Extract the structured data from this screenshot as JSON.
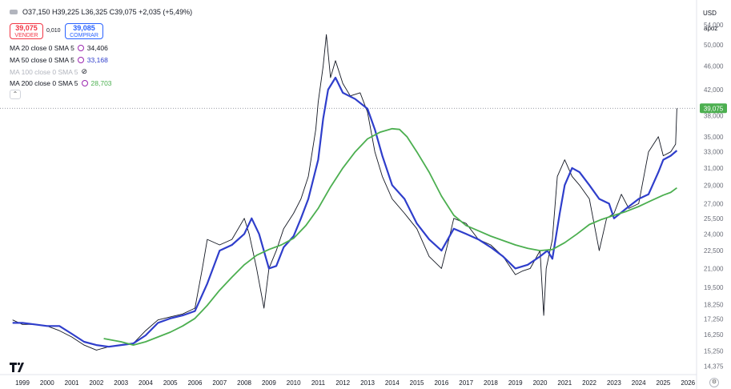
{
  "header": {
    "ohlc": "O37,150 H39,225 L36,325 C39,075 +2,035 (+5,49%)",
    "sell": {
      "price": "39,075",
      "label": "VENDER"
    },
    "spread": "0,010",
    "buy": {
      "price": "39,085",
      "label": "COMPRAR"
    },
    "indicators": [
      {
        "label": "MA 20 close 0 SMA 5",
        "value": "34,406",
        "color": "#131722"
      },
      {
        "label": "MA 50 close 0 SMA 5",
        "value": "33,168",
        "color": "#2f3ecb"
      },
      {
        "label": "MA 100 close 0 SMA 5",
        "value": "",
        "hidden": true
      },
      {
        "label": "MA 200 close 0 SMA 5",
        "value": "28,703",
        "color": "#4caf50"
      }
    ]
  },
  "price_axis": {
    "currency": "USD",
    "mode": "apoz"
  },
  "colors": {
    "price": "#131722",
    "ma50": "#2f3ecb",
    "ma200": "#4caf50",
    "last_price_bg": "#4caf50"
  },
  "chart_data": {
    "type": "line",
    "log_scale": true,
    "y_ticks": [
      "54,000",
      "50,000",
      "46,000",
      "42,000",
      "38,000",
      "35,000",
      "33,000",
      "31,000",
      "29,000",
      "27,000",
      "25,500",
      "24,000",
      "22,500",
      "21,000",
      "19,500",
      "18,250",
      "17,250",
      "16,250",
      "15,250",
      "14,375"
    ],
    "y_tick_values": [
      54,
      50,
      46,
      42,
      38,
      35,
      33,
      31,
      29,
      27,
      25.5,
      24,
      22.5,
      21,
      19.5,
      18.25,
      17.25,
      16.25,
      15.25,
      14.375
    ],
    "last_price_label": "39,075",
    "last_price": 39.075,
    "x_ticks": [
      "1999",
      "2000",
      "2001",
      "2002",
      "2003",
      "2004",
      "2005",
      "2006",
      "2007",
      "2008",
      "2009",
      "2010",
      "2011",
      "2012",
      "2013",
      "2014",
      "2015",
      "2016",
      "2017",
      "2018",
      "2019",
      "2020",
      "2021",
      "2022",
      "2023",
      "2024",
      "2025",
      "2026"
    ],
    "series": [
      {
        "key": "price",
        "x": [
          1998.6,
          1999,
          1999.5,
          2000,
          2000.5,
          2001,
          2001.5,
          2002,
          2002.5,
          2003,
          2003.5,
          2004,
          2004.5,
          2005,
          2005.5,
          2006,
          2006.3,
          2006.5,
          2007,
          2007.5,
          2008,
          2008.2,
          2008.5,
          2008.8,
          2009,
          2009.3,
          2009.6,
          2010,
          2010.3,
          2010.6,
          2010.9,
          2011,
          2011.2,
          2011.33,
          2011.5,
          2011.7,
          2012,
          2012.3,
          2012.7,
          2013,
          2013.3,
          2013.6,
          2014,
          2014.5,
          2015,
          2015.5,
          2016,
          2016.3,
          2016.5,
          2017,
          2017.5,
          2018,
          2018.5,
          2019,
          2019.3,
          2019.6,
          2020,
          2020.15,
          2020.25,
          2020.5,
          2020.7,
          2021,
          2021.3,
          2021.6,
          2022,
          2022.4,
          2022.7,
          2023,
          2023.3,
          2023.6,
          2024,
          2024.4,
          2024.8,
          2025,
          2025.3,
          2025.5,
          2025.55
        ],
        "y": [
          17.2,
          16.9,
          16.9,
          16.8,
          16.5,
          16.1,
          15.6,
          15.3,
          15.5,
          15.6,
          15.7,
          16.5,
          17.2,
          17.4,
          17.6,
          18.0,
          21.0,
          23.5,
          23.0,
          23.5,
          25.5,
          24.0,
          21.0,
          18.0,
          21.0,
          22.5,
          24.5,
          26.0,
          27.5,
          30.0,
          36.0,
          40.0,
          46.0,
          52.0,
          44.0,
          47.0,
          43.0,
          41.0,
          41.5,
          38.5,
          33.0,
          30.0,
          27.5,
          26.0,
          24.5,
          22.0,
          21.0,
          23.5,
          25.5,
          25.0,
          23.5,
          23.0,
          22.0,
          20.5,
          20.8,
          21.0,
          22.5,
          17.5,
          21.0,
          23.5,
          30.0,
          32.0,
          30.0,
          29.0,
          27.5,
          22.5,
          25.5,
          26.0,
          28.0,
          26.5,
          27.0,
          33.0,
          35.0,
          32.5,
          33.0,
          34.0,
          39.075
        ]
      },
      {
        "key": "ma50",
        "x": [
          1998.6,
          1999,
          1999.5,
          2000,
          2000.5,
          2001,
          2001.5,
          2002,
          2002.5,
          2003,
          2003.5,
          2004,
          2004.5,
          2005,
          2005.5,
          2006,
          2006.5,
          2007,
          2007.5,
          2008,
          2008.3,
          2008.6,
          2009,
          2009.3,
          2009.6,
          2010,
          2010.3,
          2010.6,
          2011,
          2011.2,
          2011.4,
          2011.7,
          2012,
          2012.5,
          2013,
          2013.3,
          2013.6,
          2014,
          2014.5,
          2015,
          2015.5,
          2016,
          2016.5,
          2017,
          2017.5,
          2018,
          2018.5,
          2019,
          2019.5,
          2020,
          2020.3,
          2020.5,
          2020.8,
          2021,
          2021.3,
          2021.6,
          2022,
          2022.4,
          2022.8,
          2023,
          2023.5,
          2024,
          2024.4,
          2024.8,
          2025,
          2025.3,
          2025.55
        ],
        "y": [
          17.0,
          17.0,
          16.9,
          16.8,
          16.8,
          16.3,
          15.8,
          15.6,
          15.5,
          15.6,
          15.7,
          16.2,
          17.0,
          17.3,
          17.5,
          17.8,
          19.8,
          22.5,
          23.0,
          24.0,
          25.5,
          24.0,
          21.0,
          21.2,
          22.8,
          23.8,
          25.5,
          27.5,
          32.0,
          37.5,
          42.0,
          44.0,
          41.5,
          40.5,
          39.0,
          36.0,
          32.5,
          29.0,
          27.5,
          25.0,
          23.5,
          22.5,
          24.5,
          24.0,
          23.5,
          22.8,
          22.0,
          21.0,
          21.3,
          22.0,
          22.5,
          21.8,
          26.0,
          29.0,
          31.0,
          30.5,
          29.0,
          27.5,
          27.0,
          25.5,
          26.5,
          27.5,
          28.0,
          30.5,
          32.0,
          32.5,
          33.168
        ]
      },
      {
        "key": "ma200",
        "x": [
          2002.3,
          2003,
          2003.5,
          2004,
          2004.5,
          2005,
          2005.5,
          2006,
          2006.5,
          2007,
          2007.5,
          2008,
          2008.5,
          2009,
          2009.5,
          2010,
          2010.5,
          2011,
          2011.5,
          2012,
          2012.5,
          2013,
          2013.5,
          2014,
          2014.3,
          2014.6,
          2015,
          2015.5,
          2016,
          2016.5,
          2017,
          2017.5,
          2018,
          2018.5,
          2019,
          2019.5,
          2020,
          2020.5,
          2021,
          2021.5,
          2022,
          2022.5,
          2023,
          2023.5,
          2024,
          2024.5,
          2025,
          2025.3,
          2025.55
        ],
        "y": [
          16.0,
          15.8,
          15.6,
          15.8,
          16.1,
          16.4,
          16.8,
          17.3,
          18.2,
          19.3,
          20.3,
          21.3,
          22.1,
          22.6,
          23.0,
          23.6,
          24.8,
          26.5,
          28.8,
          31.0,
          33.0,
          34.7,
          35.6,
          36.1,
          36.0,
          35.0,
          33.0,
          30.5,
          27.8,
          25.8,
          24.8,
          24.3,
          23.8,
          23.4,
          23.0,
          22.7,
          22.5,
          22.6,
          23.2,
          24.0,
          24.9,
          25.4,
          25.8,
          26.2,
          26.7,
          27.3,
          27.9,
          28.2,
          28.703
        ]
      }
    ]
  }
}
